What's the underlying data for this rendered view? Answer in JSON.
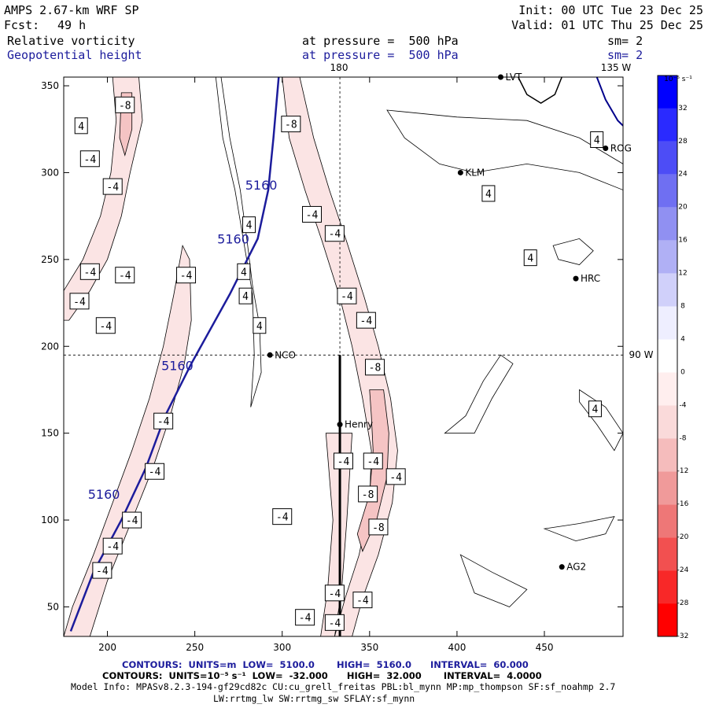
{
  "header": {
    "model": "AMPS 2.67-km WRF SP",
    "fcst_label": "Fcst:",
    "fcst_value": "49 h",
    "init": "Init: 00 UTC Tue 23 Dec 25",
    "valid": "Valid: 01 UTC Thu 25 Dec 25",
    "field1": "Relative vorticity",
    "field1_level": "at pressure =  500 hPa",
    "field1_sm": "sm= 2",
    "field2": "Geopotential height",
    "field2_level": "at pressure =  500 hPa",
    "field2_sm": "sm= 2"
  },
  "map_labels": {
    "lon_180": "180",
    "lon_135w": "135 W",
    "lat_90w": "90 W"
  },
  "stations": [
    {
      "name": "LVT",
      "x": 425,
      "y": 355
    },
    {
      "name": "ROG",
      "x": 485,
      "y": 314
    },
    {
      "name": "KLM",
      "x": 402,
      "y": 300
    },
    {
      "name": "HRC",
      "x": 468,
      "y": 239
    },
    {
      "name": "NCO",
      "x": 293,
      "y": 195
    },
    {
      "name": "Henry",
      "x": 333,
      "y": 155
    },
    {
      "name": "AG2",
      "x": 460,
      "y": 73
    }
  ],
  "height_labels": [
    {
      "text": "5160",
      "x": 288,
      "y": 293
    },
    {
      "text": "5160",
      "x": 272,
      "y": 262
    },
    {
      "text": "5160",
      "x": 240,
      "y": 189
    },
    {
      "text": "5160",
      "x": 198,
      "y": 115
    }
  ],
  "vort_labels": [
    {
      "text": "-8",
      "x": 210,
      "y": 339
    },
    {
      "text": "4",
      "x": 185,
      "y": 327
    },
    {
      "text": "-4",
      "x": 190,
      "y": 308
    },
    {
      "text": "-4",
      "x": 203,
      "y": 292
    },
    {
      "text": "-8",
      "x": 305,
      "y": 328
    },
    {
      "text": "4",
      "x": 480,
      "y": 319
    },
    {
      "text": "4",
      "x": 418,
      "y": 288
    },
    {
      "text": "-4",
      "x": 317,
      "y": 276
    },
    {
      "text": "4",
      "x": 281,
      "y": 270
    },
    {
      "text": "-4",
      "x": 330,
      "y": 265
    },
    {
      "text": "4",
      "x": 442,
      "y": 251
    },
    {
      "text": "-4",
      "x": 190,
      "y": 243
    },
    {
      "text": "-4",
      "x": 210,
      "y": 241
    },
    {
      "text": "-4",
      "x": 245,
      "y": 241
    },
    {
      "text": "4",
      "x": 278,
      "y": 243
    },
    {
      "text": "4",
      "x": 279,
      "y": 229
    },
    {
      "text": "-4",
      "x": 184,
      "y": 226
    },
    {
      "text": "-4",
      "x": 337,
      "y": 229
    },
    {
      "text": "-4",
      "x": 199,
      "y": 212
    },
    {
      "text": "4",
      "x": 287,
      "y": 212
    },
    {
      "text": "-4",
      "x": 348,
      "y": 215
    },
    {
      "text": "-8",
      "x": 353,
      "y": 188
    },
    {
      "text": "4",
      "x": 479,
      "y": 164
    },
    {
      "text": "-4",
      "x": 232,
      "y": 157
    },
    {
      "text": "-4",
      "x": 335,
      "y": 134
    },
    {
      "text": "-4",
      "x": 352,
      "y": 134
    },
    {
      "text": "-4",
      "x": 227,
      "y": 128
    },
    {
      "text": "-4",
      "x": 365,
      "y": 125
    },
    {
      "text": "-8",
      "x": 349,
      "y": 115
    },
    {
      "text": "-4",
      "x": 300,
      "y": 102
    },
    {
      "text": "-4",
      "x": 214,
      "y": 100
    },
    {
      "text": "-8",
      "x": 355,
      "y": 96
    },
    {
      "text": "-4",
      "x": 203,
      "y": 85
    },
    {
      "text": "-4",
      "x": 197,
      "y": 71
    },
    {
      "text": "-4",
      "x": 330,
      "y": 58
    },
    {
      "text": "-4",
      "x": 346,
      "y": 54
    },
    {
      "text": "-4",
      "x": 313,
      "y": 44
    },
    {
      "text": "-4",
      "x": 330,
      "y": 41
    }
  ],
  "colorbar": {
    "unit": "10⁻⁵ s⁻¹",
    "ticks": [
      "32",
      "28",
      "24",
      "20",
      "16",
      "12",
      "8",
      "4",
      "0",
      "-4",
      "-8",
      "-12",
      "-16",
      "-20",
      "-24",
      "-28",
      "-32"
    ],
    "colors": [
      "#0000ff",
      "#2a2aff",
      "#4d4df6",
      "#6f6ff2",
      "#9090f2",
      "#b0b0f5",
      "#d0d0fa",
      "#eeeeff",
      "#ffffff",
      "#ffeeee",
      "#fadada",
      "#f5bcbc",
      "#f09a9a",
      "#ee7777",
      "#f25050",
      "#f82828",
      "#ff0000"
    ]
  },
  "footer": {
    "contours1": "CONTOURS:  UNITS=m  LOW=  5100.0       HIGH=  5160.0      INTERVAL=  60.000",
    "contours2": "CONTOURS:  UNITS=10⁻⁵ s⁻¹  LOW=  -32.000      HIGH=  32.000       INTERVAL=  4.0000",
    "model_info": "Model Info: MPASv8.2.3-194-gf29cd82c CU:cu_grell_freitas PBL:bl_mynn MP:mp_thompson SF:sf_noahmp 2.7",
    "model_info2": "LW:rrtmg_lw SW:rrtmg_sw SFLAY:sf_mynn"
  },
  "chart_data": {
    "type": "contour",
    "x_ticks": [
      200,
      250,
      300,
      350,
      400,
      450
    ],
    "y_ticks": [
      50,
      100,
      150,
      200,
      250,
      300,
      350
    ],
    "xlim": [
      175,
      495
    ],
    "ylim": [
      33,
      355
    ],
    "height_contour_value": 5160,
    "vorticity_levels": [
      -8,
      -4,
      4
    ],
    "cross_section": {
      "x": [
        333,
        333
      ],
      "y": [
        33,
        195
      ]
    }
  }
}
